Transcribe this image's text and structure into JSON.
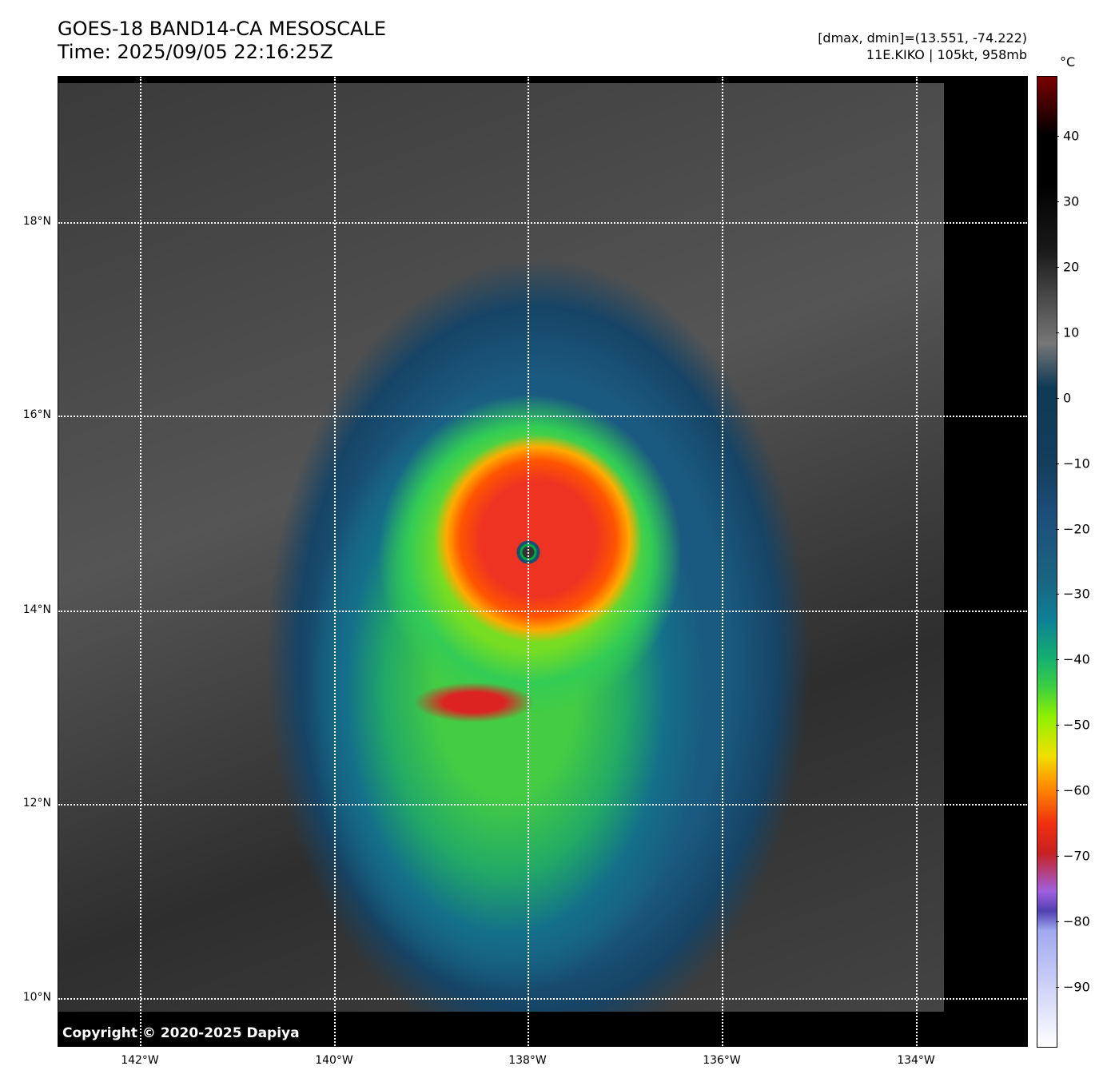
{
  "title": {
    "line1": "GOES-18 BAND14-CA MESOSCALE",
    "line2": "Time: 2025/09/05 22:16:25Z"
  },
  "info": {
    "dminmax": "[dmax, dmin]=(13.551, -74.222)",
    "storm": "11E.KIKO | 105kt, 958mb"
  },
  "copyright": "Copyright © 2020-2025 Dapiya",
  "lat_labels": [
    "18°N",
    "16°N",
    "14°N",
    "12°N",
    "10°N"
  ],
  "lon_labels": [
    "142°W",
    "140°W",
    "138°W",
    "136°W",
    "134°W"
  ],
  "colorbar": {
    "unit": "°C",
    "range": [
      -99,
      49
    ],
    "ticks": [
      "40",
      "30",
      "20",
      "10",
      "0",
      "−10",
      "−20",
      "−30",
      "−40",
      "−50",
      "−60",
      "−70",
      "−80",
      "−90"
    ]
  }
}
